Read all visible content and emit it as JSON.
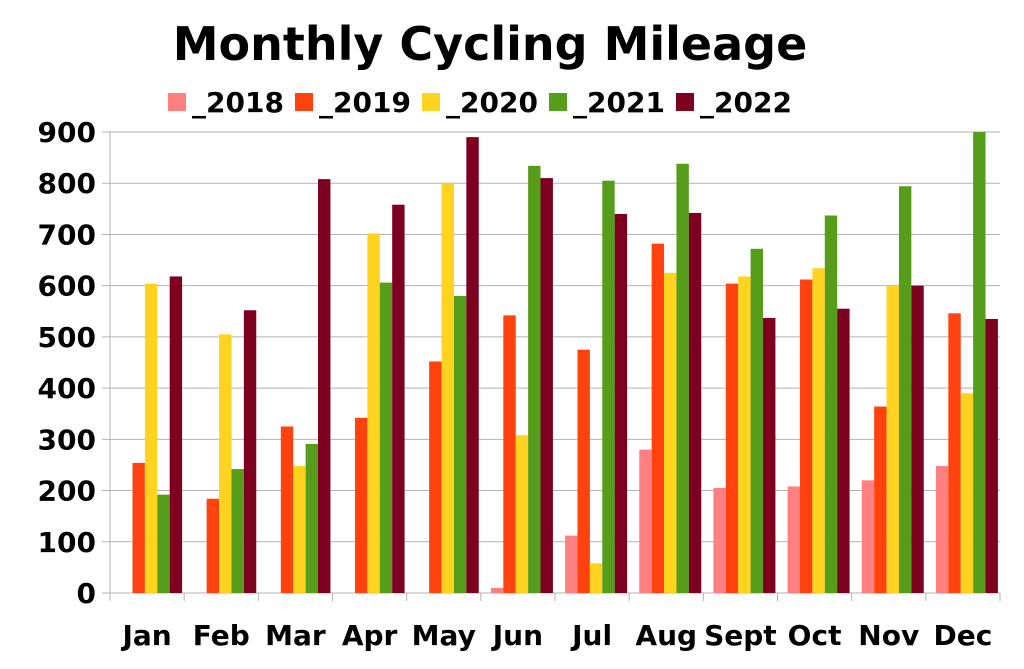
{
  "chart_data": {
    "type": "bar",
    "title": "Monthly Cycling Mileage",
    "xlabel": "",
    "ylabel": "",
    "ylim": [
      0,
      900
    ],
    "yticks": [
      0,
      100,
      200,
      300,
      400,
      500,
      600,
      700,
      800,
      900
    ],
    "grid": "horizontal",
    "legend_position": "top",
    "categories": [
      "Jan",
      "Feb",
      "Mar",
      "Apr",
      "May",
      "Jun",
      "Jul",
      "Aug",
      "Sept",
      "Oct",
      "Nov",
      "Dec"
    ],
    "series": [
      {
        "name": "_2018",
        "color": "#ff8080",
        "values": [
          0,
          0,
          0,
          0,
          0,
          10,
          112,
          280,
          205,
          208,
          220,
          248
        ]
      },
      {
        "name": "_2019",
        "color": "#ff420e",
        "values": [
          254,
          184,
          325,
          342,
          452,
          542,
          475,
          682,
          604,
          612,
          364,
          546
        ]
      },
      {
        "name": "_2020",
        "color": "#ffd320",
        "values": [
          604,
          505,
          248,
          702,
          800,
          308,
          58,
          625,
          618,
          634,
          600,
          390
        ]
      },
      {
        "name": "_2021",
        "color": "#579d1c",
        "values": [
          192,
          242,
          291,
          606,
          580,
          834,
          805,
          838,
          672,
          737,
          794,
          900
        ]
      },
      {
        "name": "_2022",
        "color": "#7e0021",
        "values": [
          618,
          552,
          808,
          758,
          890,
          810,
          740,
          742,
          537,
          555,
          600,
          535
        ]
      }
    ]
  }
}
